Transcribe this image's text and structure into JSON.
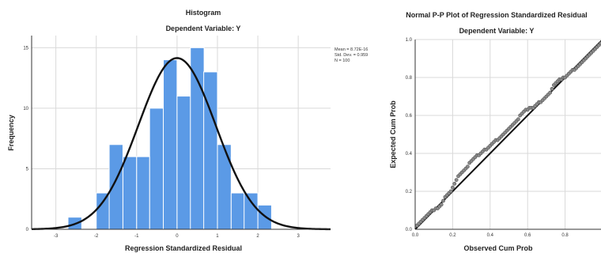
{
  "chart_data": [
    {
      "type": "bar",
      "title": "Histogram",
      "subtitle": "Dependent Variable: Y",
      "xlabel": "Regression Standardized Residual",
      "ylabel": "Frequency",
      "xlim": [
        -3.6,
        3.8
      ],
      "ylim": [
        0,
        16
      ],
      "xticks": [
        "-3",
        "-2",
        "-1",
        "0",
        "1",
        "2",
        "3"
      ],
      "yticks": [
        "0",
        "5",
        "10",
        "15"
      ],
      "bin_width": 0.25,
      "bins": [
        {
          "start": -2.7,
          "count": 1
        },
        {
          "start": -2.0,
          "count": 3
        },
        {
          "start": -1.68,
          "count": 7
        },
        {
          "start": -1.34,
          "count": 6
        },
        {
          "start": -0.68,
          "count": 10
        },
        {
          "start": -0.34,
          "count": 14
        },
        {
          "start": 0.0,
          "count": 11
        },
        {
          "start": 0.33,
          "count": 15
        },
        {
          "start": 0.66,
          "count": 13
        },
        {
          "start": 1.0,
          "count": 7
        },
        {
          "start": 1.34,
          "count": 3
        },
        {
          "start": 2.0,
          "count": 2
        }
      ],
      "extra_bars": [
        {
          "start": -1.0,
          "end": -0.68,
          "count": 6
        },
        {
          "start": 1.66,
          "end": 2.0,
          "count": 3
        }
      ],
      "normal_curve": {
        "mean": 0,
        "sd": 0.959,
        "n": 100
      },
      "stats": [
        "Mean = 8.72E-16",
        "Std. Dev. = 0.959",
        "N = 100"
      ],
      "bar_color": "#5b9ae6",
      "curve_color": "#111111",
      "grid": true
    },
    {
      "type": "scatter",
      "title": "Normal P-P Plot of Regression Standardized Residual",
      "subtitle": "Dependent Variable: Y",
      "xlabel": "Observed Cum Prob",
      "ylabel": "Expected Cum Prob",
      "xlim": [
        0,
        1
      ],
      "ylim": [
        0,
        1
      ],
      "xticks": [
        "0.0",
        "0.2",
        "0.4",
        "0.6",
        "0.8"
      ],
      "yticks": [
        "0.0",
        "0.2",
        "0.4",
        "0.6",
        "0.8",
        "1.0"
      ],
      "reference_line": [
        [
          0,
          0
        ],
        [
          1,
          1
        ]
      ],
      "points": [
        [
          0.01,
          0.02
        ],
        [
          0.02,
          0.03
        ],
        [
          0.03,
          0.04
        ],
        [
          0.04,
          0.05
        ],
        [
          0.05,
          0.06
        ],
        [
          0.06,
          0.07
        ],
        [
          0.07,
          0.08
        ],
        [
          0.08,
          0.09
        ],
        [
          0.09,
          0.1
        ],
        [
          0.1,
          0.1
        ],
        [
          0.11,
          0.11
        ],
        [
          0.12,
          0.11
        ],
        [
          0.13,
          0.12
        ],
        [
          0.14,
          0.13
        ],
        [
          0.15,
          0.15
        ],
        [
          0.16,
          0.17
        ],
        [
          0.17,
          0.18
        ],
        [
          0.18,
          0.19
        ],
        [
          0.19,
          0.2
        ],
        [
          0.2,
          0.22
        ],
        [
          0.21,
          0.24
        ],
        [
          0.22,
          0.26
        ],
        [
          0.23,
          0.28
        ],
        [
          0.24,
          0.29
        ],
        [
          0.25,
          0.3
        ],
        [
          0.26,
          0.31
        ],
        [
          0.27,
          0.32
        ],
        [
          0.28,
          0.33
        ],
        [
          0.29,
          0.35
        ],
        [
          0.3,
          0.36
        ],
        [
          0.31,
          0.37
        ],
        [
          0.32,
          0.38
        ],
        [
          0.33,
          0.39
        ],
        [
          0.34,
          0.39
        ],
        [
          0.35,
          0.4
        ],
        [
          0.36,
          0.41
        ],
        [
          0.37,
          0.42
        ],
        [
          0.38,
          0.42
        ],
        [
          0.39,
          0.43
        ],
        [
          0.4,
          0.44
        ],
        [
          0.41,
          0.45
        ],
        [
          0.42,
          0.46
        ],
        [
          0.43,
          0.47
        ],
        [
          0.44,
          0.47
        ],
        [
          0.45,
          0.48
        ],
        [
          0.46,
          0.49
        ],
        [
          0.47,
          0.5
        ],
        [
          0.48,
          0.51
        ],
        [
          0.49,
          0.52
        ],
        [
          0.5,
          0.53
        ],
        [
          0.51,
          0.54
        ],
        [
          0.52,
          0.55
        ],
        [
          0.53,
          0.56
        ],
        [
          0.54,
          0.57
        ],
        [
          0.55,
          0.58
        ],
        [
          0.56,
          0.6
        ],
        [
          0.57,
          0.61
        ],
        [
          0.58,
          0.62
        ],
        [
          0.59,
          0.63
        ],
        [
          0.6,
          0.63
        ],
        [
          0.61,
          0.64
        ],
        [
          0.62,
          0.64
        ],
        [
          0.63,
          0.64
        ],
        [
          0.64,
          0.65
        ],
        [
          0.65,
          0.66
        ],
        [
          0.66,
          0.67
        ],
        [
          0.67,
          0.67
        ],
        [
          0.68,
          0.68
        ],
        [
          0.69,
          0.69
        ],
        [
          0.7,
          0.7
        ],
        [
          0.71,
          0.71
        ],
        [
          0.72,
          0.72
        ],
        [
          0.73,
          0.74
        ],
        [
          0.74,
          0.76
        ],
        [
          0.75,
          0.77
        ],
        [
          0.76,
          0.78
        ],
        [
          0.77,
          0.79
        ],
        [
          0.78,
          0.79
        ],
        [
          0.79,
          0.8
        ],
        [
          0.8,
          0.8
        ],
        [
          0.81,
          0.81
        ],
        [
          0.82,
          0.82
        ],
        [
          0.83,
          0.83
        ],
        [
          0.84,
          0.84
        ],
        [
          0.85,
          0.84
        ],
        [
          0.86,
          0.85
        ],
        [
          0.87,
          0.86
        ],
        [
          0.88,
          0.87
        ],
        [
          0.89,
          0.88
        ],
        [
          0.9,
          0.89
        ],
        [
          0.91,
          0.9
        ],
        [
          0.92,
          0.91
        ],
        [
          0.93,
          0.92
        ],
        [
          0.94,
          0.93
        ],
        [
          0.95,
          0.94
        ],
        [
          0.96,
          0.95
        ],
        [
          0.97,
          0.96
        ],
        [
          0.98,
          0.97
        ],
        [
          0.99,
          0.98
        ],
        [
          1.0,
          0.99
        ]
      ],
      "point_color": "#8a8a8a",
      "line_color": "#111111",
      "grid": true
    }
  ]
}
